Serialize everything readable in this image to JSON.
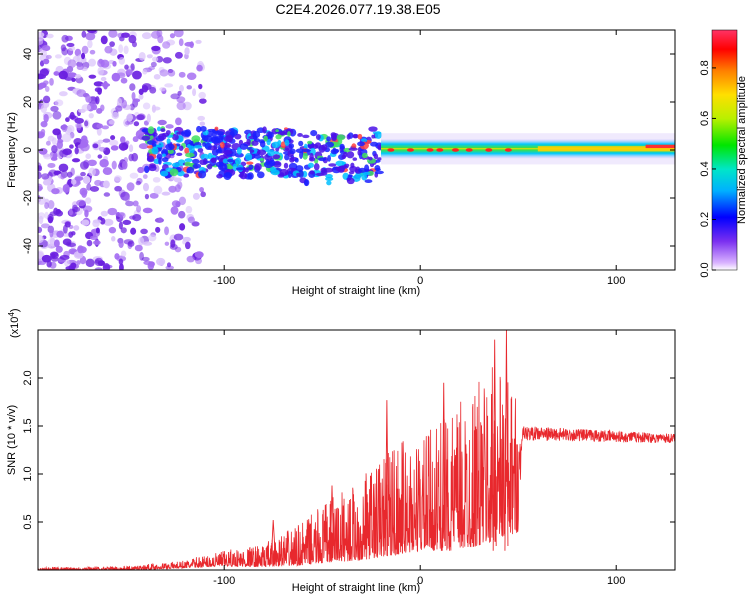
{
  "title": "C2E4.2026.077.19.38.E05",
  "chart_data": [
    {
      "type": "heatmap",
      "name": "spectrogram",
      "xlabel": "Height of straight line (km)",
      "ylabel": "Frequency (Hz)",
      "xlim": [
        -195,
        130
      ],
      "ylim": [
        -50,
        50
      ],
      "xticks": [
        -100,
        0,
        100
      ],
      "xtick_labels": [
        "-100",
        "0",
        "100"
      ],
      "yticks": [
        -40,
        -20,
        0,
        20,
        40
      ],
      "ytick_labels": [
        "-40",
        "-20",
        "0",
        "20",
        "40"
      ],
      "colorbar": {
        "label": "Normalized spectral amplitude",
        "range": [
          0,
          0.95
        ],
        "ticks": [
          0,
          0.2,
          0.4,
          0.6,
          0.8
        ],
        "tick_labels": [
          "0.0",
          "0.2",
          "0.4",
          "0.6",
          "0.8"
        ]
      },
      "regions": [
        {
          "name": "noise",
          "x": [
            -195,
            -115
          ],
          "f": [
            -50,
            50
          ],
          "amplitude": 0.12
        },
        {
          "name": "scattered-signal",
          "x": [
            -140,
            -20
          ],
          "f": [
            -10,
            10
          ],
          "amplitude": 0.3
        },
        {
          "name": "signal-line",
          "x": [
            -20,
            130
          ],
          "f": [
            -2,
            3
          ],
          "amplitude": 0.9
        }
      ]
    },
    {
      "type": "line",
      "name": "snr",
      "xlabel": "Height of straight line (km)",
      "ylabel": "SNR (10 * v/v)",
      "multiplier": "(x10",
      "multiplier_exp": "4",
      "multiplier_close": ")",
      "xlim": [
        -195,
        130
      ],
      "ylim": [
        0,
        2.5
      ],
      "xticks": [
        -100,
        0,
        100
      ],
      "xtick_labels": [
        "-100",
        "0",
        "100"
      ],
      "yticks": [
        0.5,
        1.0,
        1.5,
        2.0
      ],
      "ytick_labels": [
        "0.5",
        "1.0",
        "1.5",
        "2.0"
      ],
      "color": "#e8282d",
      "envelope": [
        {
          "x": -195,
          "lo": 0.0,
          "hi": 0.03
        },
        {
          "x": -150,
          "lo": 0.0,
          "hi": 0.04
        },
        {
          "x": -120,
          "lo": 0.02,
          "hi": 0.1
        },
        {
          "x": -100,
          "lo": 0.04,
          "hi": 0.22
        },
        {
          "x": -80,
          "lo": 0.03,
          "hi": 0.3
        },
        {
          "x": -60,
          "lo": 0.05,
          "hi": 0.55
        },
        {
          "x": -45,
          "lo": 0.08,
          "hi": 0.85
        },
        {
          "x": -30,
          "lo": 0.1,
          "hi": 1.05
        },
        {
          "x": -15,
          "lo": 0.15,
          "hi": 1.5
        },
        {
          "x": 0,
          "lo": 0.2,
          "hi": 1.5
        },
        {
          "x": 15,
          "lo": 0.2,
          "hi": 1.8
        },
        {
          "x": 30,
          "lo": 0.25,
          "hi": 2.2
        },
        {
          "x": 40,
          "lo": 0.3,
          "hi": 2.4
        },
        {
          "x": 50,
          "lo": 0.4,
          "hi": 2.0
        },
        {
          "x": 52,
          "lo": 1.35,
          "hi": 1.5
        },
        {
          "x": 130,
          "lo": 1.32,
          "hi": 1.42
        }
      ],
      "peaks": [
        {
          "x": -75,
          "y": 0.52
        },
        {
          "x": -45,
          "y": 0.88
        },
        {
          "x": -17,
          "y": 1.77
        },
        {
          "x": 12,
          "y": 1.95
        },
        {
          "x": 38,
          "y": 2.4
        },
        {
          "x": 44,
          "y": 2.5
        }
      ]
    }
  ]
}
